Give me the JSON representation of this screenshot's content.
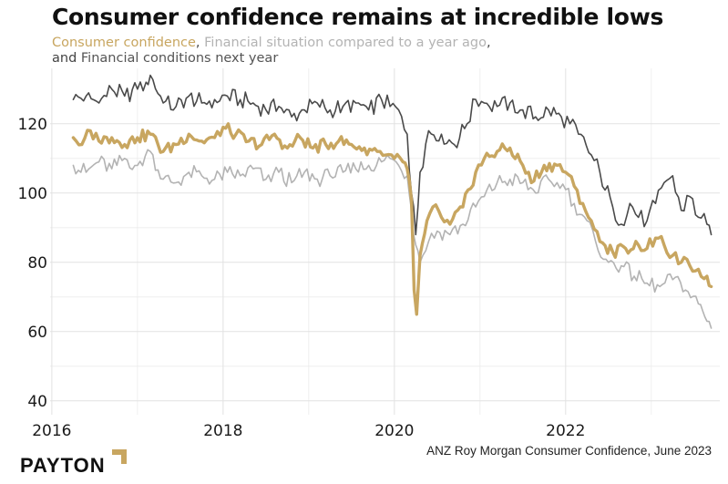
{
  "title": "Consumer confidence remains at incredible lows",
  "subtitle": {
    "series1": "Consumer confidence",
    "sep1": ",",
    "series2": "Financial situation compared to a year ago",
    "sep2": ",",
    "connector": "and",
    "series3": "Financial conditions next year"
  },
  "colors": {
    "consumer_confidence": "#c8a660",
    "financial_situation": "#b3b3b3",
    "financial_conditions": "#4a4a4a",
    "grid": "#ececec",
    "logo_mark": "#c8a660"
  },
  "logo": {
    "text": "PAYTON",
    "mark_icon": "corner-bracket-icon"
  },
  "source": "ANZ Roy Morgan Consumer Confidence, June 2023",
  "chart_data": {
    "type": "line",
    "title": "Consumer confidence remains at incredible lows",
    "xlabel": "",
    "ylabel": "",
    "xlim": [
      2015.98,
      2023.8
    ],
    "ylim": [
      36,
      136
    ],
    "x_ticks": [
      2016,
      2018,
      2020,
      2022
    ],
    "y_ticks": [
      40,
      60,
      80,
      100,
      120
    ],
    "grid": true,
    "legend": "subtitle",
    "series": [
      {
        "name": "Financial conditions next year",
        "points": [
          [
            2016.25,
            127
          ],
          [
            2016.4,
            128
          ],
          [
            2016.55,
            126
          ],
          [
            2016.7,
            130
          ],
          [
            2016.85,
            128
          ],
          [
            2017.0,
            130
          ],
          [
            2017.1,
            132
          ],
          [
            2017.15,
            134
          ],
          [
            2017.3,
            126
          ],
          [
            2017.45,
            125
          ],
          [
            2017.6,
            128
          ],
          [
            2017.75,
            126
          ],
          [
            2017.9,
            127
          ],
          [
            2018.05,
            128
          ],
          [
            2018.2,
            127
          ],
          [
            2018.35,
            126
          ],
          [
            2018.5,
            124
          ],
          [
            2018.65,
            125
          ],
          [
            2018.8,
            122
          ],
          [
            2018.95,
            124
          ],
          [
            2019.1,
            126
          ],
          [
            2019.25,
            124
          ],
          [
            2019.4,
            125
          ],
          [
            2019.55,
            126
          ],
          [
            2019.7,
            124
          ],
          [
            2019.85,
            127
          ],
          [
            2019.95,
            125
          ],
          [
            2020.05,
            124
          ],
          [
            2020.15,
            117
          ],
          [
            2020.2,
            100
          ],
          [
            2020.25,
            88
          ],
          [
            2020.3,
            106
          ],
          [
            2020.4,
            118
          ],
          [
            2020.55,
            117
          ],
          [
            2020.7,
            114
          ],
          [
            2020.85,
            120
          ],
          [
            2020.95,
            127
          ],
          [
            2021.05,
            126
          ],
          [
            2021.2,
            125
          ],
          [
            2021.35,
            126
          ],
          [
            2021.5,
            124
          ],
          [
            2021.65,
            122
          ],
          [
            2021.8,
            124
          ],
          [
            2021.95,
            122
          ],
          [
            2022.05,
            120
          ],
          [
            2022.15,
            117
          ],
          [
            2022.3,
            111
          ],
          [
            2022.4,
            106
          ],
          [
            2022.55,
            96
          ],
          [
            2022.65,
            91
          ],
          [
            2022.75,
            97
          ],
          [
            2022.85,
            93
          ],
          [
            2022.95,
            92
          ],
          [
            2023.05,
            97
          ],
          [
            2023.15,
            103
          ],
          [
            2023.25,
            105
          ],
          [
            2023.35,
            95
          ],
          [
            2023.45,
            99
          ],
          [
            2023.55,
            93
          ],
          [
            2023.65,
            91
          ],
          [
            2023.7,
            88
          ]
        ]
      },
      {
        "name": "Consumer confidence",
        "points": [
          [
            2016.25,
            116
          ],
          [
            2016.35,
            114
          ],
          [
            2016.45,
            118
          ],
          [
            2016.55,
            115
          ],
          [
            2016.7,
            116
          ],
          [
            2016.85,
            114
          ],
          [
            2017.0,
            116
          ],
          [
            2017.15,
            117
          ],
          [
            2017.3,
            112
          ],
          [
            2017.45,
            114
          ],
          [
            2017.6,
            117
          ],
          [
            2017.75,
            115
          ],
          [
            2017.9,
            116
          ],
          [
            2018.0,
            119
          ],
          [
            2018.15,
            117
          ],
          [
            2018.3,
            115
          ],
          [
            2018.45,
            114
          ],
          [
            2018.6,
            117
          ],
          [
            2018.75,
            113
          ],
          [
            2018.9,
            116
          ],
          [
            2019.05,
            113
          ],
          [
            2019.2,
            114
          ],
          [
            2019.35,
            115
          ],
          [
            2019.5,
            114
          ],
          [
            2019.65,
            113
          ],
          [
            2019.8,
            112
          ],
          [
            2019.9,
            111
          ],
          [
            2020.0,
            110
          ],
          [
            2020.1,
            109
          ],
          [
            2020.15,
            107
          ],
          [
            2020.2,
            98
          ],
          [
            2020.23,
            72
          ],
          [
            2020.26,
            65
          ],
          [
            2020.3,
            82
          ],
          [
            2020.38,
            92
          ],
          [
            2020.45,
            96
          ],
          [
            2020.55,
            93
          ],
          [
            2020.65,
            91
          ],
          [
            2020.8,
            96
          ],
          [
            2020.95,
            106
          ],
          [
            2021.05,
            110
          ],
          [
            2021.2,
            112
          ],
          [
            2021.35,
            113
          ],
          [
            2021.5,
            108
          ],
          [
            2021.6,
            103
          ],
          [
            2021.75,
            108
          ],
          [
            2021.9,
            108
          ],
          [
            2022.0,
            106
          ],
          [
            2022.1,
            102
          ],
          [
            2022.2,
            97
          ],
          [
            2022.3,
            92
          ],
          [
            2022.4,
            86
          ],
          [
            2022.55,
            83
          ],
          [
            2022.7,
            84
          ],
          [
            2022.85,
            85
          ],
          [
            2022.95,
            84
          ],
          [
            2023.05,
            87
          ],
          [
            2023.15,
            85
          ],
          [
            2023.25,
            82
          ],
          [
            2023.35,
            80
          ],
          [
            2023.45,
            79
          ],
          [
            2023.55,
            78
          ],
          [
            2023.65,
            76
          ],
          [
            2023.7,
            73
          ]
        ]
      },
      {
        "name": "Financial situation compared to a year ago",
        "points": [
          [
            2016.25,
            108
          ],
          [
            2016.4,
            106
          ],
          [
            2016.55,
            109
          ],
          [
            2016.7,
            107
          ],
          [
            2016.85,
            110
          ],
          [
            2017.0,
            108
          ],
          [
            2017.15,
            112
          ],
          [
            2017.3,
            104
          ],
          [
            2017.45,
            103
          ],
          [
            2017.6,
            106
          ],
          [
            2017.75,
            105
          ],
          [
            2017.9,
            104
          ],
          [
            2018.05,
            106
          ],
          [
            2018.2,
            105
          ],
          [
            2018.35,
            107
          ],
          [
            2018.5,
            104
          ],
          [
            2018.65,
            106
          ],
          [
            2018.8,
            103
          ],
          [
            2018.95,
            106
          ],
          [
            2019.1,
            104
          ],
          [
            2019.25,
            105
          ],
          [
            2019.4,
            106
          ],
          [
            2019.55,
            107
          ],
          [
            2019.7,
            108
          ],
          [
            2019.85,
            109
          ],
          [
            2019.95,
            110
          ],
          [
            2020.05,
            108
          ],
          [
            2020.15,
            105
          ],
          [
            2020.2,
            95
          ],
          [
            2020.25,
            85
          ],
          [
            2020.3,
            80
          ],
          [
            2020.4,
            86
          ],
          [
            2020.5,
            89
          ],
          [
            2020.65,
            88
          ],
          [
            2020.8,
            91
          ],
          [
            2020.95,
            96
          ],
          [
            2021.05,
            99
          ],
          [
            2021.2,
            103
          ],
          [
            2021.35,
            104
          ],
          [
            2021.5,
            103
          ],
          [
            2021.65,
            100
          ],
          [
            2021.8,
            104
          ],
          [
            2021.9,
            103
          ],
          [
            2022.0,
            101
          ],
          [
            2022.1,
            97
          ],
          [
            2022.25,
            92
          ],
          [
            2022.35,
            86
          ],
          [
            2022.5,
            80
          ],
          [
            2022.65,
            79
          ],
          [
            2022.8,
            76
          ],
          [
            2022.95,
            74
          ],
          [
            2023.1,
            73
          ],
          [
            2023.25,
            75
          ],
          [
            2023.4,
            72
          ],
          [
            2023.55,
            68
          ],
          [
            2023.6,
            66
          ],
          [
            2023.65,
            63
          ],
          [
            2023.7,
            61
          ]
        ]
      }
    ]
  }
}
